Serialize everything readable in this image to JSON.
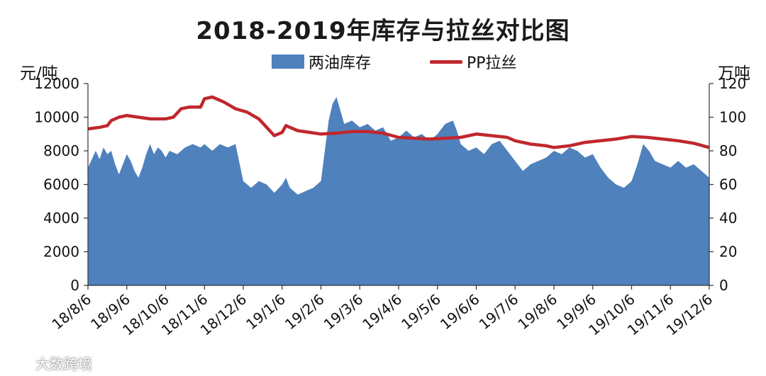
{
  "title": "2018-2019年库存与拉丝对比图",
  "left_unit": "元/吨",
  "right_unit": "万吨",
  "legend": {
    "area_label": "两油库存",
    "line_label": "PP拉丝"
  },
  "watermark": "大数跨境",
  "colors": {
    "area": "#4f81bd",
    "line": "#c0272d",
    "axis": "#333333"
  },
  "chart_data": {
    "type": "area+line",
    "x_labels": [
      "18/8/6",
      "18/9/6",
      "18/10/6",
      "18/11/6",
      "18/12/6",
      "19/1/6",
      "19/2/6",
      "19/3/6",
      "19/4/6",
      "19/5/6",
      "19/6/6",
      "19/7/6",
      "19/8/6",
      "19/9/6",
      "19/10/6",
      "19/11/6",
      "19/12/6"
    ],
    "y_left": {
      "min": 0,
      "max": 12000,
      "ticks": [
        0,
        2000,
        4000,
        6000,
        8000,
        10000,
        12000
      ]
    },
    "y_right": {
      "min": 0,
      "max": 120,
      "ticks": [
        0,
        20,
        40,
        60,
        80,
        100,
        120
      ]
    },
    "series": [
      {
        "name": "两油库存",
        "axis": "right",
        "type": "area",
        "points": [
          [
            0,
            70
          ],
          [
            0.1,
            75
          ],
          [
            0.2,
            80
          ],
          [
            0.3,
            75
          ],
          [
            0.4,
            82
          ],
          [
            0.5,
            78
          ],
          [
            0.6,
            80
          ],
          [
            0.7,
            72
          ],
          [
            0.8,
            66
          ],
          [
            0.9,
            72
          ],
          [
            1.0,
            78
          ],
          [
            1.1,
            74
          ],
          [
            1.2,
            68
          ],
          [
            1.3,
            64
          ],
          [
            1.4,
            70
          ],
          [
            1.5,
            78
          ],
          [
            1.6,
            84
          ],
          [
            1.7,
            78
          ],
          [
            1.8,
            82
          ],
          [
            1.9,
            80
          ],
          [
            2.0,
            76
          ],
          [
            2.1,
            80
          ],
          [
            2.3,
            78
          ],
          [
            2.5,
            82
          ],
          [
            2.7,
            84
          ],
          [
            2.9,
            82
          ],
          [
            3.0,
            84
          ],
          [
            3.2,
            80
          ],
          [
            3.4,
            84
          ],
          [
            3.6,
            82
          ],
          [
            3.8,
            84
          ],
          [
            4.0,
            62
          ],
          [
            4.1,
            60
          ],
          [
            4.2,
            58
          ],
          [
            4.4,
            62
          ],
          [
            4.6,
            60
          ],
          [
            4.8,
            55
          ],
          [
            5.0,
            60
          ],
          [
            5.1,
            64
          ],
          [
            5.2,
            58
          ],
          [
            5.4,
            54
          ],
          [
            5.6,
            56
          ],
          [
            5.8,
            58
          ],
          [
            6.0,
            62
          ],
          [
            6.1,
            80
          ],
          [
            6.2,
            98
          ],
          [
            6.3,
            108
          ],
          [
            6.4,
            112
          ],
          [
            6.5,
            104
          ],
          [
            6.6,
            96
          ],
          [
            6.8,
            98
          ],
          [
            7.0,
            94
          ],
          [
            7.2,
            96
          ],
          [
            7.4,
            92
          ],
          [
            7.6,
            94
          ],
          [
            7.8,
            86
          ],
          [
            8.0,
            88
          ],
          [
            8.2,
            92
          ],
          [
            8.4,
            88
          ],
          [
            8.6,
            90
          ],
          [
            8.8,
            86
          ],
          [
            9.0,
            90
          ],
          [
            9.2,
            96
          ],
          [
            9.4,
            98
          ],
          [
            9.5,
            92
          ],
          [
            9.6,
            84
          ],
          [
            9.8,
            80
          ],
          [
            10.0,
            82
          ],
          [
            10.2,
            78
          ],
          [
            10.4,
            84
          ],
          [
            10.6,
            86
          ],
          [
            10.8,
            80
          ],
          [
            11.0,
            74
          ],
          [
            11.2,
            68
          ],
          [
            11.4,
            72
          ],
          [
            11.6,
            74
          ],
          [
            11.8,
            76
          ],
          [
            12.0,
            80
          ],
          [
            12.2,
            78
          ],
          [
            12.4,
            82
          ],
          [
            12.6,
            80
          ],
          [
            12.8,
            76
          ],
          [
            13.0,
            78
          ],
          [
            13.2,
            70
          ],
          [
            13.4,
            64
          ],
          [
            13.6,
            60
          ],
          [
            13.8,
            58
          ],
          [
            14.0,
            62
          ],
          [
            14.15,
            72
          ],
          [
            14.3,
            84
          ],
          [
            14.45,
            80
          ],
          [
            14.6,
            74
          ],
          [
            14.8,
            72
          ],
          [
            15.0,
            70
          ],
          [
            15.2,
            74
          ],
          [
            15.4,
            70
          ],
          [
            15.6,
            72
          ],
          [
            15.8,
            68
          ],
          [
            16.0,
            64
          ]
        ]
      },
      {
        "name": "PP拉丝",
        "axis": "left",
        "type": "line",
        "points": [
          [
            0,
            9300
          ],
          [
            0.3,
            9400
          ],
          [
            0.5,
            9500
          ],
          [
            0.6,
            9800
          ],
          [
            0.8,
            10000
          ],
          [
            1.0,
            10100
          ],
          [
            1.3,
            10000
          ],
          [
            1.6,
            9900
          ],
          [
            2.0,
            9900
          ],
          [
            2.2,
            10000
          ],
          [
            2.4,
            10500
          ],
          [
            2.6,
            10600
          ],
          [
            2.9,
            10600
          ],
          [
            3.0,
            11100
          ],
          [
            3.2,
            11200
          ],
          [
            3.5,
            10900
          ],
          [
            3.8,
            10500
          ],
          [
            4.1,
            10300
          ],
          [
            4.4,
            9900
          ],
          [
            4.6,
            9400
          ],
          [
            4.8,
            8900
          ],
          [
            5.0,
            9100
          ],
          [
            5.1,
            9500
          ],
          [
            5.2,
            9400
          ],
          [
            5.4,
            9200
          ],
          [
            5.7,
            9100
          ],
          [
            6.0,
            9000
          ],
          [
            6.4,
            9050
          ],
          [
            6.8,
            9150
          ],
          [
            7.2,
            9150
          ],
          [
            7.6,
            9050
          ],
          [
            8.0,
            8800
          ],
          [
            8.4,
            8750
          ],
          [
            8.8,
            8700
          ],
          [
            9.2,
            8750
          ],
          [
            9.6,
            8800
          ],
          [
            10.0,
            9000
          ],
          [
            10.4,
            8900
          ],
          [
            10.8,
            8800
          ],
          [
            11.0,
            8600
          ],
          [
            11.4,
            8400
          ],
          [
            11.8,
            8300
          ],
          [
            12.0,
            8200
          ],
          [
            12.4,
            8300
          ],
          [
            12.8,
            8500
          ],
          [
            13.2,
            8600
          ],
          [
            13.6,
            8700
          ],
          [
            14.0,
            8850
          ],
          [
            14.4,
            8800
          ],
          [
            14.8,
            8700
          ],
          [
            15.2,
            8600
          ],
          [
            15.6,
            8450
          ],
          [
            16.0,
            8200
          ]
        ]
      }
    ]
  }
}
